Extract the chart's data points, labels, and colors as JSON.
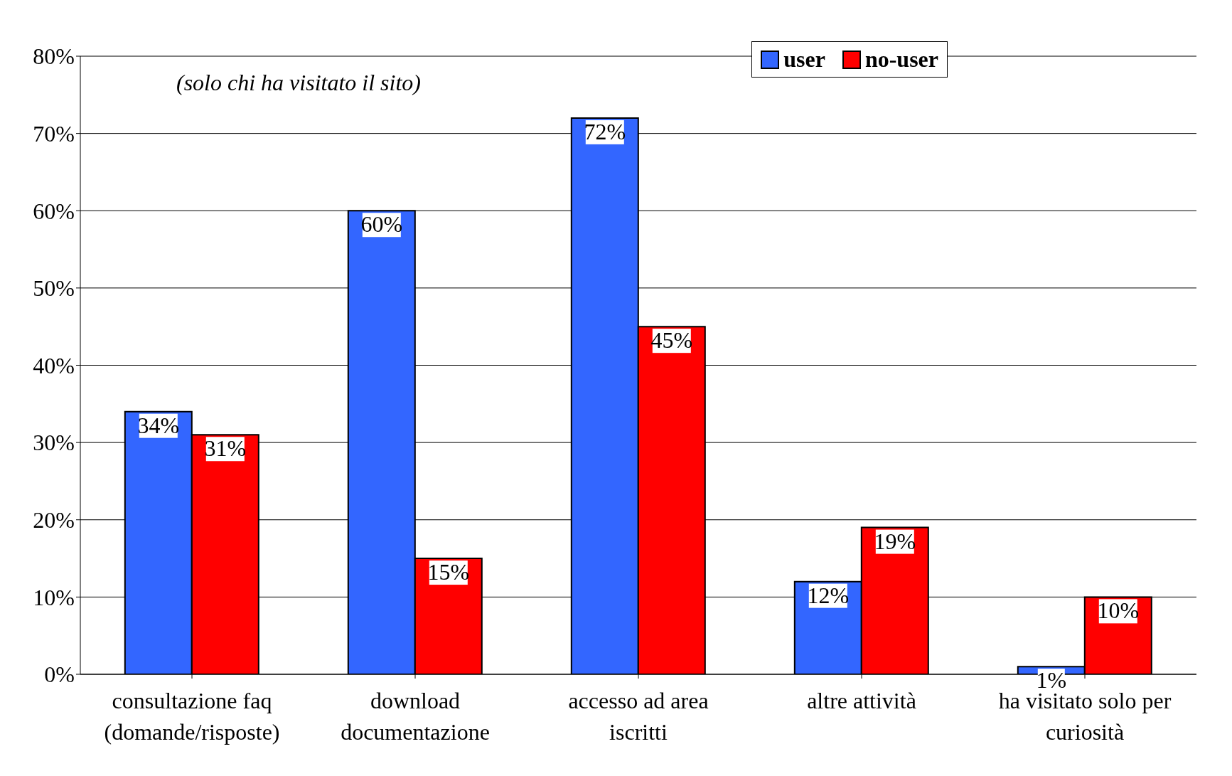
{
  "chart_data": {
    "type": "bar",
    "categories": [
      "consultazione faq (domande/risposte)",
      "download documentazione",
      "accesso ad area iscritti",
      "altre attività",
      "ha visitato solo per curiosità"
    ],
    "series": [
      {
        "name": "user",
        "color": "#3366ff",
        "values": [
          34,
          60,
          72,
          12,
          1
        ]
      },
      {
        "name": "no-user",
        "color": "#ff0000",
        "values": [
          31,
          15,
          45,
          19,
          10
        ]
      }
    ],
    "ylim": [
      0,
      80
    ],
    "yticks": [
      {
        "value": 0,
        "label": "0%"
      },
      {
        "value": 10,
        "label": "10%"
      },
      {
        "value": 20,
        "label": "20%"
      },
      {
        "value": 30,
        "label": "30%"
      },
      {
        "value": 40,
        "label": "40%"
      },
      {
        "value": 50,
        "label": "50%"
      },
      {
        "value": 60,
        "label": "60%"
      },
      {
        "value": 70,
        "label": "70%"
      },
      {
        "value": 80,
        "label": "80%"
      }
    ],
    "value_labels": [
      [
        "34%",
        "60%",
        "72%",
        "12%",
        "1%"
      ],
      [
        "31%",
        "15%",
        "45%",
        "19%",
        "10%"
      ]
    ],
    "annotations": [
      "(solo chi ha visitato il sito)"
    ],
    "grid": "y",
    "legend": "top right"
  }
}
